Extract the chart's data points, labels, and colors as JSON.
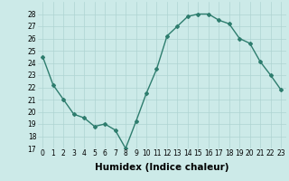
{
  "x": [
    0,
    1,
    2,
    3,
    4,
    5,
    6,
    7,
    8,
    9,
    10,
    11,
    12,
    13,
    14,
    15,
    16,
    17,
    18,
    19,
    20,
    21,
    22,
    23
  ],
  "y": [
    24.5,
    22.2,
    21.0,
    19.8,
    19.5,
    18.8,
    19.0,
    18.5,
    17.0,
    19.2,
    21.5,
    23.5,
    26.2,
    27.0,
    27.8,
    28.0,
    28.0,
    27.5,
    27.2,
    26.0,
    25.6,
    24.1,
    23.0,
    21.8
  ],
  "line_color": "#2e7d6e",
  "marker": "D",
  "marker_size": 2.0,
  "linewidth": 1.0,
  "bg_color": "#cceae8",
  "grid_color": "#aed4d2",
  "xlabel": "Humidex (Indice chaleur)",
  "ylabel": "",
  "title": "",
  "ylim": [
    17,
    29
  ],
  "xlim": [
    -0.5,
    23.5
  ],
  "yticks": [
    17,
    18,
    19,
    20,
    21,
    22,
    23,
    24,
    25,
    26,
    27,
    28
  ],
  "xticks": [
    0,
    1,
    2,
    3,
    4,
    5,
    6,
    7,
    8,
    9,
    10,
    11,
    12,
    13,
    14,
    15,
    16,
    17,
    18,
    19,
    20,
    21,
    22,
    23
  ],
  "tick_label_fontsize": 5.5,
  "xlabel_fontsize": 7.5
}
